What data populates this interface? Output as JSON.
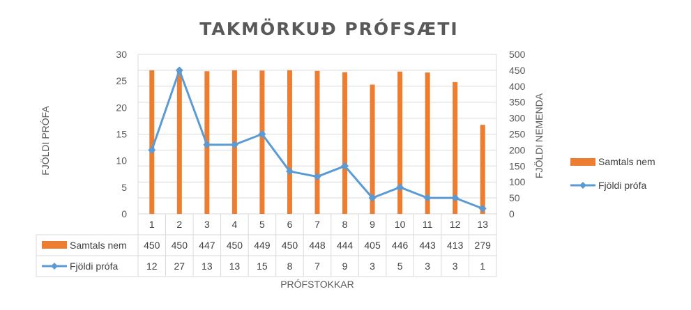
{
  "chart_data": {
    "type": "bar",
    "title": "TAKMÖRKUÐ PRÓFSÆTI",
    "xlabel": "PRÓFSTOKKAR",
    "ylabel_left": "FJÖLDI PRÓFA",
    "ylabel_right": "FJÖLDI NEMENDA",
    "categories": [
      "1",
      "2",
      "3",
      "4",
      "5",
      "6",
      "7",
      "8",
      "9",
      "10",
      "11",
      "12",
      "13"
    ],
    "ylim_left": [
      0,
      30
    ],
    "yticks_left": [
      0,
      5,
      10,
      15,
      20,
      25,
      30
    ],
    "ylim_right": [
      0,
      500
    ],
    "yticks_right": [
      0,
      50,
      100,
      150,
      200,
      250,
      300,
      350,
      400,
      450,
      500
    ],
    "grid": true,
    "legend_position": "right",
    "data_table": true,
    "series": [
      {
        "name": "Samtals nem",
        "type": "bar",
        "axis": "right",
        "color": "#ED7D31",
        "values": [
          450,
          450,
          447,
          450,
          449,
          450,
          448,
          444,
          405,
          446,
          443,
          413,
          279
        ]
      },
      {
        "name": "Fjöldi prófa",
        "type": "line",
        "axis": "left",
        "color": "#5B9BD5",
        "values": [
          12,
          27,
          13,
          13,
          15,
          8,
          7,
          9,
          3,
          5,
          3,
          3,
          1
        ]
      }
    ]
  }
}
